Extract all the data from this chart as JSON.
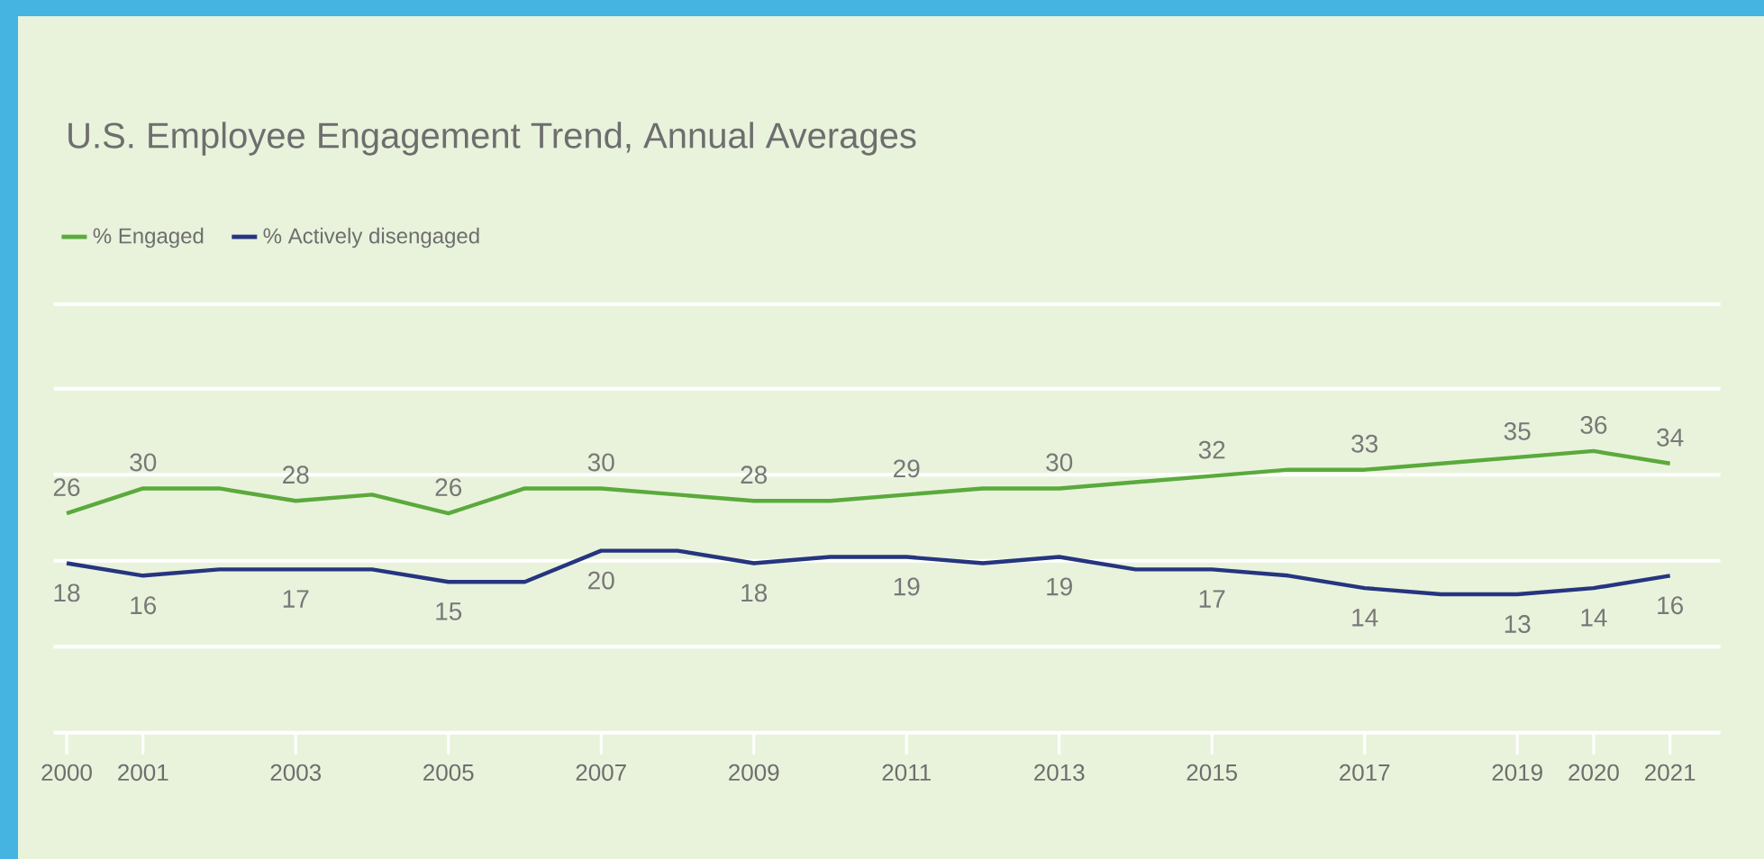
{
  "chart_data": {
    "type": "line",
    "title": "U.S. Employee Engagement Trend, Annual Averages",
    "categories": [
      "2000",
      "2001",
      null,
      "2003",
      null,
      "2005",
      null,
      "2007",
      null,
      "2009",
      null,
      "2011",
      null,
      "2013",
      null,
      "2015",
      null,
      "2017",
      null,
      "2019",
      "2020",
      "2021"
    ],
    "series": [
      {
        "name": "% Engaged",
        "color": "#5aaa3c",
        "values": [
          26,
          30,
          30,
          28,
          29,
          26,
          30,
          30,
          29,
          28,
          28,
          29,
          30,
          30,
          31,
          32,
          33,
          33,
          34,
          35,
          36,
          34
        ],
        "value_labels": [
          "26",
          "30",
          null,
          "28",
          null,
          "26",
          null,
          "30",
          null,
          "28",
          null,
          "29",
          null,
          "30",
          null,
          "32",
          null,
          "33",
          null,
          "35",
          "36",
          "34"
        ]
      },
      {
        "name": "% Actively disengaged",
        "color": "#26357f",
        "values": [
          18,
          16,
          17,
          17,
          17,
          15,
          15,
          20,
          20,
          18,
          19,
          19,
          18,
          19,
          17,
          17,
          16,
          14,
          13,
          13,
          14,
          16
        ],
        "value_labels": [
          "18",
          "16",
          null,
          "17",
          null,
          "15",
          null,
          "20",
          null,
          "18",
          null,
          "19",
          null,
          "19",
          null,
          "17",
          null,
          "14",
          null,
          "13",
          "14",
          "16"
        ]
      }
    ],
    "ylim": [
      -9.2,
      59.6
    ],
    "yticks": [
      {
        "value": -9.2,
        "label": null
      },
      {
        "value": 4.6,
        "label": null
      },
      {
        "value": 18.4,
        "label": null
      },
      {
        "value": 32.2,
        "label": null
      },
      {
        "value": 46,
        "label": null
      },
      {
        "value": 59.6,
        "label": null
      }
    ],
    "grid": "y",
    "legend": "top left",
    "tick_labels": "x"
  }
}
